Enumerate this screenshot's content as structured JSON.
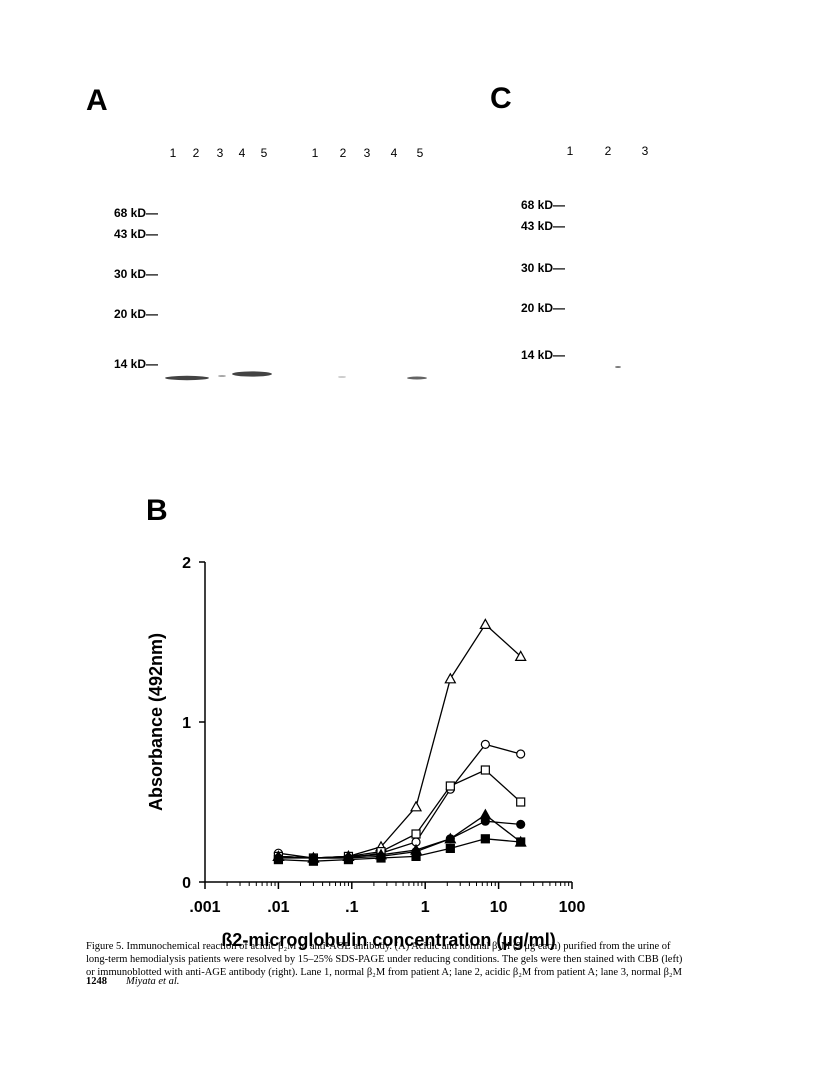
{
  "panels": {
    "a": {
      "label": "A",
      "lanes": [
        "1",
        "2",
        "3",
        "4",
        "5",
        "1",
        "2",
        "3",
        "4",
        "5"
      ],
      "markers": [
        "68 kD—",
        "43 kD—",
        "30 kD—",
        "20 kD—",
        "14 kD—"
      ]
    },
    "c": {
      "label": "C",
      "lanes": [
        "1",
        "2",
        "3"
      ],
      "markers": [
        "68 kD—",
        "43 kD—",
        "30 kD—",
        "20 kD—",
        "14 kD—"
      ]
    }
  },
  "chart_data": {
    "type": "line",
    "panel_label": "B",
    "x_label": "ß2-microglobulin concentration (µg/ml)",
    "y_label": "Absorbance (492nm)",
    "log_x": true,
    "xlim": [
      0.001,
      100
    ],
    "xticks": [
      {
        "value": 0.001,
        "label": ".001"
      },
      {
        "value": 0.01,
        "label": ".01"
      },
      {
        "value": 0.1,
        "label": ".1"
      },
      1,
      10,
      100
    ],
    "ylim": [
      0,
      2
    ],
    "yticks": [
      0,
      1,
      2
    ],
    "x": [
      0.01,
      0.03,
      0.09,
      0.25,
      0.75,
      2.2,
      6.6,
      20
    ],
    "series": [
      {
        "marker": "triangle",
        "filled": false,
        "color": "#000000",
        "values": [
          0.16,
          0.15,
          0.16,
          0.22,
          0.47,
          1.27,
          1.61,
          1.41
        ]
      },
      {
        "marker": "circle",
        "filled": false,
        "color": "#000000",
        "values": [
          0.18,
          0.15,
          0.15,
          0.18,
          0.25,
          0.58,
          0.86,
          0.8
        ]
      },
      {
        "marker": "square",
        "filled": false,
        "color": "#000000",
        "values": [
          0.16,
          0.15,
          0.16,
          0.19,
          0.3,
          0.6,
          0.7,
          0.5
        ]
      },
      {
        "marker": "triangle",
        "filled": true,
        "color": "#000000",
        "values": [
          0.16,
          0.15,
          0.16,
          0.17,
          0.2,
          0.27,
          0.42,
          0.25
        ]
      },
      {
        "marker": "circle",
        "filled": true,
        "color": "#000000",
        "values": [
          0.15,
          0.15,
          0.15,
          0.16,
          0.19,
          0.27,
          0.38,
          0.36
        ]
      },
      {
        "marker": "square",
        "filled": true,
        "color": "#000000",
        "values": [
          0.14,
          0.13,
          0.14,
          0.15,
          0.16,
          0.21,
          0.27,
          0.25
        ]
      }
    ]
  },
  "caption": {
    "lines": [
      "Figure 5. Immunochemical reaction of acidic β₂M to anti-AGE antibody. (A) Acidic and normal β₂M (2 μg each) purified from the urine of",
      "long-term hemodialysis patients were resolved by 15–25% SDS-PAGE under reducing conditions. The gels were then stained with CBB (left)",
      "or immunoblotted with anti-AGE antibody (right). Lane 1, normal β₂M from patient A; lane 2, acidic β₂M from patient A; lane 3, normal β₂M"
    ]
  },
  "footer": {
    "page": "1248",
    "authors": "Miyata et al."
  }
}
